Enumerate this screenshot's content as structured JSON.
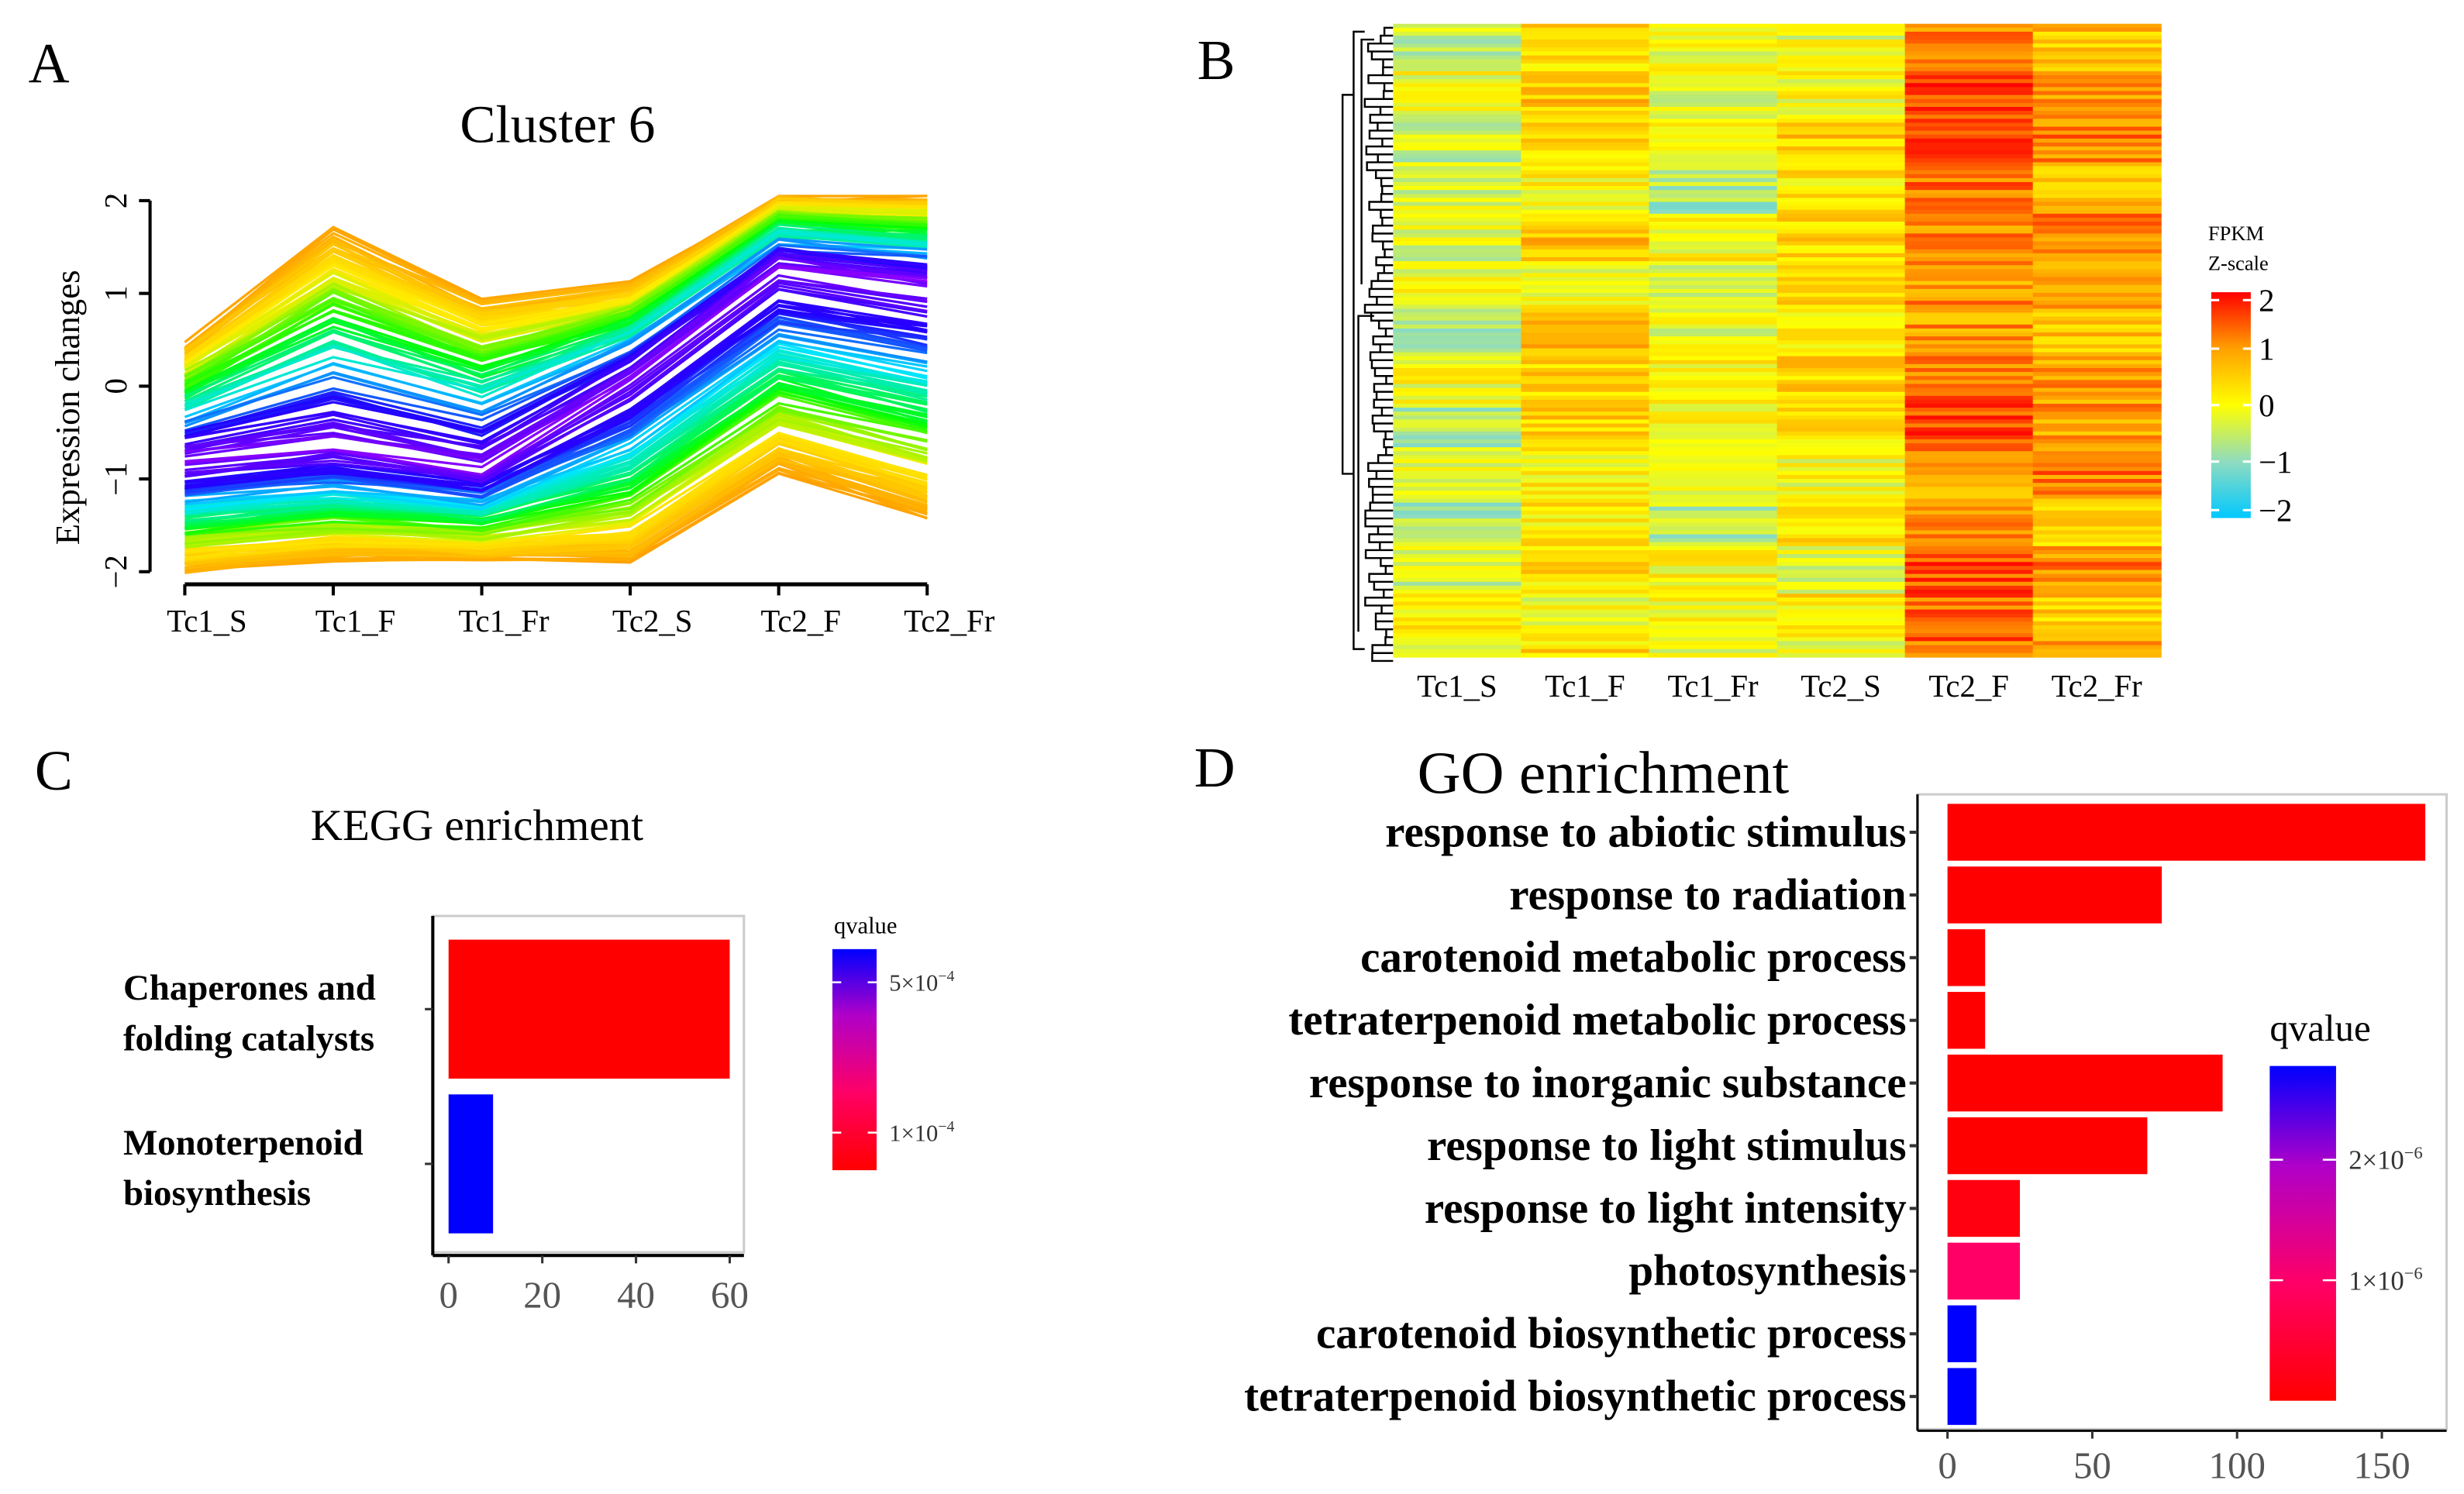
{
  "panels": {
    "a": "A",
    "b": "B",
    "c": "C",
    "d": "D"
  },
  "chart_data": [
    {
      "type": "line",
      "title": "Cluster 6",
      "xlabel": "",
      "ylabel": "Expression changes",
      "categories": [
        "Tc1_S",
        "Tc1_F",
        "Tc1_Fr",
        "Tc2_S",
        "Tc2_F",
        "Tc2_Fr"
      ],
      "ylim": [
        -2,
        2
      ],
      "yticks": [
        "2",
        "1",
        "0",
        "−1",
        "−2"
      ],
      "yticks_values": [
        2,
        1,
        0,
        -1,
        -2
      ],
      "center_profile": [
        -0.8,
        -0.65,
        -0.9,
        0.1,
        1.3,
        1.1
      ],
      "upper_envelope": [
        0.45,
        1.7,
        0.95,
        1.1,
        2.05,
        2.05
      ],
      "lower_envelope": [
        -2.0,
        -1.85,
        -1.85,
        -1.9,
        -0.9,
        -1.4
      ],
      "color_scale": [
        "#8800ff",
        "#2200ff",
        "#00e5ff",
        "#00ff00",
        "#ffee00",
        "#ffa000"
      ]
    },
    {
      "type": "heatmap",
      "columns": [
        "Tc1_S",
        "Tc1_F",
        "Tc1_Fr",
        "Tc2_S",
        "Tc2_F",
        "Tc2_Fr"
      ],
      "column_means": [
        -0.3,
        0.3,
        -0.3,
        0.2,
        1.3,
        0.9
      ],
      "row_count": 160,
      "legend_title": [
        "FPKM",
        "Z-scale"
      ],
      "legend_ticks": [
        "2",
        "1",
        "0",
        "−1",
        "−2"
      ],
      "legend_tick_values": [
        2,
        1,
        0,
        -1,
        -2
      ],
      "zlim": [
        -2,
        2
      ]
    },
    {
      "type": "bar",
      "title": "KEGG enrichment",
      "categories": [
        [
          "Chaperones and",
          "folding catalysts"
        ],
        [
          "Monoterpenoid",
          "biosynthesis"
        ]
      ],
      "values": [
        60,
        9.5
      ],
      "colors": [
        "#ff0000",
        "#0000ff"
      ],
      "xlim": [
        0,
        63
      ],
      "xticks": [
        0,
        20,
        40,
        60
      ],
      "legend_title": "qvalue",
      "legend_ticks": [
        {
          "base": "5×10",
          "exp": "−4",
          "pos": 0.85
        },
        {
          "base": "1×10",
          "exp": "−4",
          "pos": 0.17
        }
      ]
    },
    {
      "type": "bar",
      "title": "GO enrichment",
      "categories": [
        "response to abiotic stimulus",
        "response to radiation",
        "carotenoid metabolic process",
        "tetraterpenoid metabolic process",
        "response to inorganic substance",
        "response to light stimulus",
        "response to light intensity",
        "photosynthesis",
        "carotenoid biosynthetic process",
        "tetraterpenoid biosynthetic process"
      ],
      "values": [
        165,
        74,
        13,
        13,
        95,
        69,
        25,
        25,
        10,
        10
      ],
      "colors": [
        "#ff0000",
        "#ff0000",
        "#ff0000",
        "#ff0000",
        "#ff0000",
        "#ff0000",
        "#ff0010",
        "#ff0066",
        "#0000ff",
        "#0000ff"
      ],
      "xlim": [
        -10,
        172
      ],
      "xticks": [
        0,
        50,
        100,
        150
      ],
      "legend_title": "qvalue",
      "legend_ticks": [
        {
          "base": "2×10",
          "exp": "−6",
          "pos": 0.72
        },
        {
          "base": "1×10",
          "exp": "−6",
          "pos": 0.36
        }
      ]
    }
  ]
}
